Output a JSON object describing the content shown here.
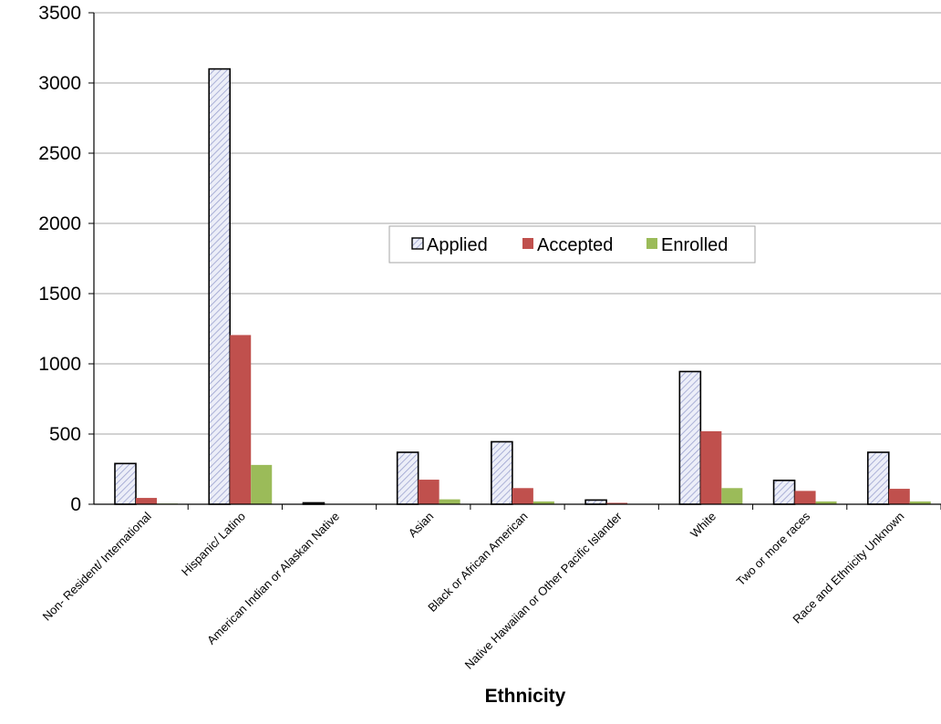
{
  "chart_data": {
    "type": "bar",
    "title": "",
    "xlabel": "Ethnicity",
    "ylabel": "",
    "ylim": [
      0,
      3500
    ],
    "yticks": [
      0,
      500,
      1000,
      1500,
      2000,
      2500,
      3000,
      3500
    ],
    "grid": true,
    "legend_position": "center",
    "categories": [
      "Non- Resident/ International",
      "Hispanic/ Latino",
      "American Indian or Alaskan Native",
      "Asian",
      "Black or African American",
      "Native Hawaiian or Other Pacific Islander",
      "White",
      "Two or more races",
      "Race and Ethnicity Unknown"
    ],
    "series": [
      {
        "name": "Applied",
        "color": "#dcdff0",
        "hatch": true,
        "values": [
          290,
          3100,
          10,
          370,
          445,
          30,
          945,
          170,
          370
        ]
      },
      {
        "name": "Accepted",
        "color": "#c0504d",
        "values": [
          45,
          1205,
          0,
          175,
          115,
          10,
          520,
          95,
          110
        ]
      },
      {
        "name": "Enrolled",
        "color": "#9bbb59",
        "values": [
          5,
          280,
          0,
          35,
          20,
          0,
          115,
          20,
          20
        ]
      }
    ]
  }
}
